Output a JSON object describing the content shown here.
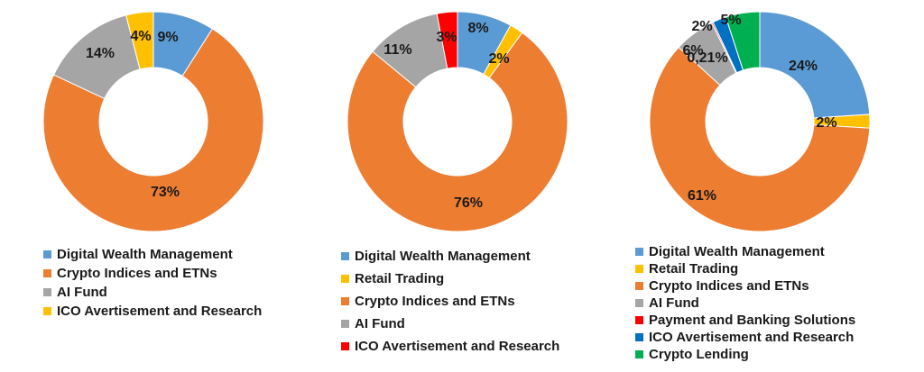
{
  "colors": {
    "digital_wealth": "#5B9BD5",
    "retail_trading": "#FFC000",
    "crypto_indices": "#ED7D31",
    "ai_fund": "#A5A5A5",
    "payment_banking": "#FF0000",
    "ico": "#FFC000",
    "ico_blue": "#0070C0",
    "crypto_lending": "#00B050"
  },
  "chart_data": [
    {
      "type": "pie",
      "donut": true,
      "legend_position": "bottom",
      "categories": [
        "Digital Wealth Management",
        "Crypto Indices and ETNs",
        "AI Fund",
        "ICO Avertisement and Research"
      ],
      "values": [
        9,
        73,
        14,
        4
      ],
      "labels": [
        "9%",
        "73%",
        "14%",
        "4%"
      ],
      "colors": [
        "#5B9BD5",
        "#ED7D31",
        "#A5A5A5",
        "#FFC000"
      ],
      "slice_order": [
        0,
        1,
        2,
        3
      ]
    },
    {
      "type": "pie",
      "donut": true,
      "legend_position": "bottom",
      "categories": [
        "Digital Wealth Management",
        "Retail Trading",
        "Crypto Indices and ETNs",
        "AI Fund",
        "ICO Avertisement and Research"
      ],
      "values": [
        8,
        2,
        76,
        11,
        3
      ],
      "labels": [
        "8%",
        "2%",
        "76%",
        "11%",
        "3%"
      ],
      "colors": [
        "#5B9BD5",
        "#FFC000",
        "#ED7D31",
        "#A5A5A5",
        "#FF0000"
      ],
      "slice_order": [
        0,
        1,
        2,
        3,
        4
      ]
    },
    {
      "type": "pie",
      "donut": true,
      "legend_position": "bottom",
      "categories": [
        "Digital Wealth Management",
        "Retail Trading",
        "Crypto Indices and ETNs",
        "AI Fund",
        "Payment and Banking Solutions",
        "ICO Avertisement and Research",
        "Crypto Lending"
      ],
      "values": [
        24,
        2,
        61,
        6,
        0.21,
        2,
        5
      ],
      "labels": [
        "24%",
        "2%",
        "61%",
        "6%",
        "0,21%",
        "2%",
        "5%"
      ],
      "colors": [
        "#5B9BD5",
        "#FFC000",
        "#ED7D31",
        "#A5A5A5",
        "#FF0000",
        "#0070C0",
        "#00B050"
      ],
      "slice_order": [
        0,
        1,
        2,
        3,
        4,
        5,
        6
      ]
    }
  ]
}
